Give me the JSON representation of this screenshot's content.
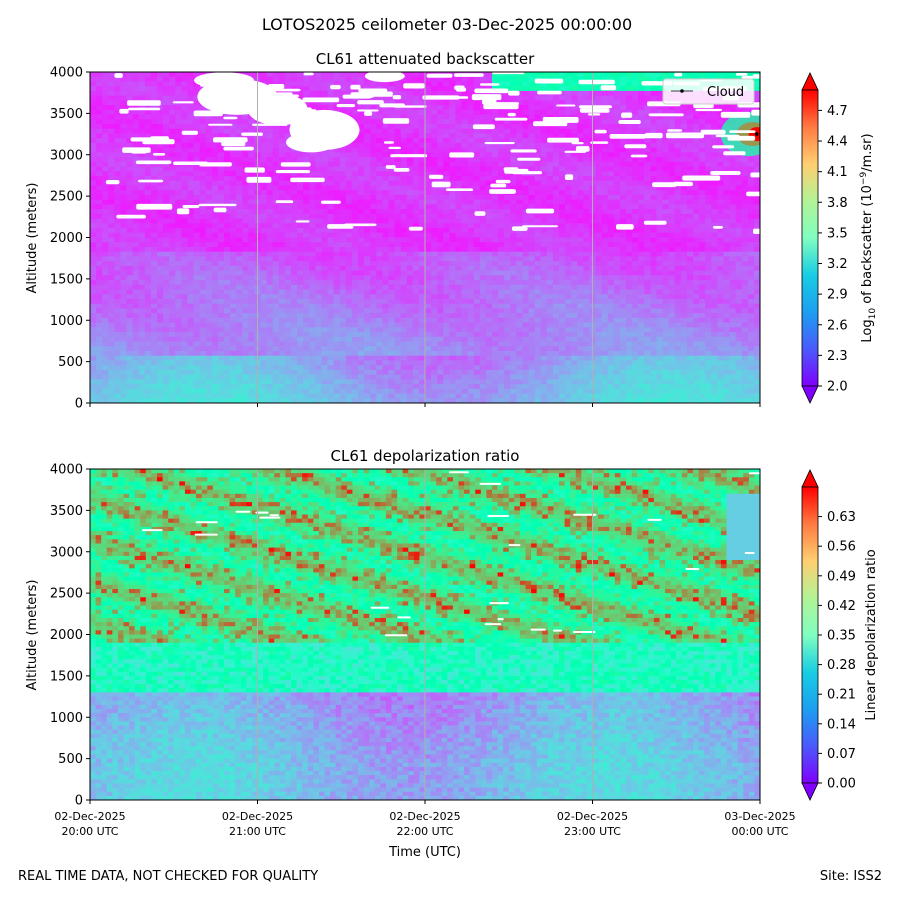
{
  "figure": {
    "suptitle": "LOTOS2025 ceilometer 03-Dec-2025 00:00:00",
    "footer_left": "REAL TIME DATA, NOT CHECKED FOR QUALITY",
    "footer_right": "Site: ISS2"
  },
  "chart_data": [
    {
      "type": "heatmap",
      "title": "CL61 attenuated backscatter",
      "ylabel": "Altitude (meters)",
      "xlabel": "",
      "ylim": [
        0,
        4000
      ],
      "yticks": [
        0,
        500,
        1000,
        1500,
        2000,
        2500,
        3000,
        3500,
        4000
      ],
      "x_range_hours": [
        20,
        24
      ],
      "x_gridlines_hours": [
        21,
        22,
        23
      ],
      "colorbar": {
        "label_prefix": "Log",
        "label_sub": "10",
        "label_mid": " of backscatter (10",
        "label_sup": "−9",
        "label_suffix": "/m.sr)",
        "range": [
          2.0,
          4.9
        ],
        "ticks": [
          "2.0",
          "2.3",
          "2.6",
          "2.9",
          "3.2",
          "3.5",
          "3.8",
          "4.1",
          "4.4",
          "4.7"
        ],
        "tick_values": [
          2.0,
          2.3,
          2.6,
          2.9,
          3.2,
          3.5,
          3.8,
          4.1,
          4.4,
          4.7
        ]
      },
      "legend": {
        "label": "Cloud",
        "position": "top-right"
      },
      "cloud_detection": {
        "time_hour": 23.98,
        "altitude": 3250
      }
    },
    {
      "type": "heatmap",
      "title": "CL61 depolarization ratio",
      "ylabel": "Altitude (meters)",
      "xlabel": "Time (UTC)",
      "ylim": [
        0,
        4000
      ],
      "yticks": [
        0,
        500,
        1000,
        1500,
        2000,
        2500,
        3000,
        3500,
        4000
      ],
      "x_range_hours": [
        20,
        24
      ],
      "x_gridlines_hours": [
        21,
        22,
        23
      ],
      "xticks": [
        {
          "hour": 20,
          "line1": "02-Dec-2025",
          "line2": "20:00 UTC"
        },
        {
          "hour": 21,
          "line1": "02-Dec-2025",
          "line2": "21:00 UTC"
        },
        {
          "hour": 22,
          "line1": "02-Dec-2025",
          "line2": "22:00 UTC"
        },
        {
          "hour": 23,
          "line1": "02-Dec-2025",
          "line2": "23:00 UTC"
        },
        {
          "hour": 24,
          "line1": "03-Dec-2025",
          "line2": "00:00 UTC"
        }
      ],
      "colorbar": {
        "label": "Linear depolarization ratio",
        "range": [
          0.0,
          0.7
        ],
        "ticks": [
          "0.00",
          "0.07",
          "0.14",
          "0.21",
          "0.28",
          "0.35",
          "0.42",
          "0.49",
          "0.56",
          "0.63"
        ],
        "tick_values": [
          0.0,
          0.07,
          0.14,
          0.21,
          0.28,
          0.35,
          0.42,
          0.49,
          0.56,
          0.63
        ]
      }
    }
  ]
}
